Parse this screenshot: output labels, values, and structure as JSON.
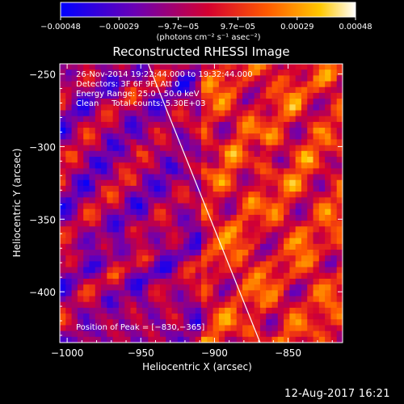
{
  "chart_data": {
    "type": "heatmap",
    "title": "Reconstructed RHESSI Image",
    "xlabel": "Heliocentric X (arcsec)",
    "ylabel": "Heliocentric Y (arcsec)",
    "xlim": [
      -1005,
      -813
    ],
    "ylim": [
      -435,
      -243
    ],
    "x_ticks": [
      -1000,
      -950,
      -900,
      -850
    ],
    "x_tick_labels": [
      "−1000",
      "−950",
      "−900",
      "−850"
    ],
    "y_ticks": [
      -400,
      -350,
      -300,
      -250
    ],
    "y_tick_labels": [
      "−400",
      "−350",
      "−300",
      "−250"
    ],
    "colorbar": {
      "range": [
        -0.00048,
        0.00048
      ],
      "ticks": [
        -0.00048,
        -0.00029,
        -9.7e-05,
        9.7e-05,
        0.00029,
        0.00048
      ],
      "tick_labels": [
        "−0.00048",
        "−0.00029",
        "−9.7e−05",
        "9.7e−05",
        "0.00029",
        "0.00048"
      ],
      "units_label": "(photons cm⁻² s⁻¹ asec⁻²)",
      "colormap": "blue-purple-red-orange-yellow-white"
    },
    "annotations": [
      "26-Nov-2014 19:22:44.000 to 19:32:44.000",
      "Detectors: 3F 6F 9F, Att 0",
      "Energy Range: 25.0 - 50.0 keV",
      "Clean     Total counts: 5.30E+03"
    ],
    "peak_label": "Position of Peak = [−830,−365]",
    "peak_position": [
      -830,
      -365
    ],
    "limb_line": [
      [
        -945,
        -243
      ],
      [
        -869,
        -435
      ]
    ],
    "grid": false,
    "legend": "none"
  },
  "footer_date": "12-Aug-2017 16:21",
  "colors": {
    "background": "#000000",
    "foreground": "#ffffff"
  }
}
